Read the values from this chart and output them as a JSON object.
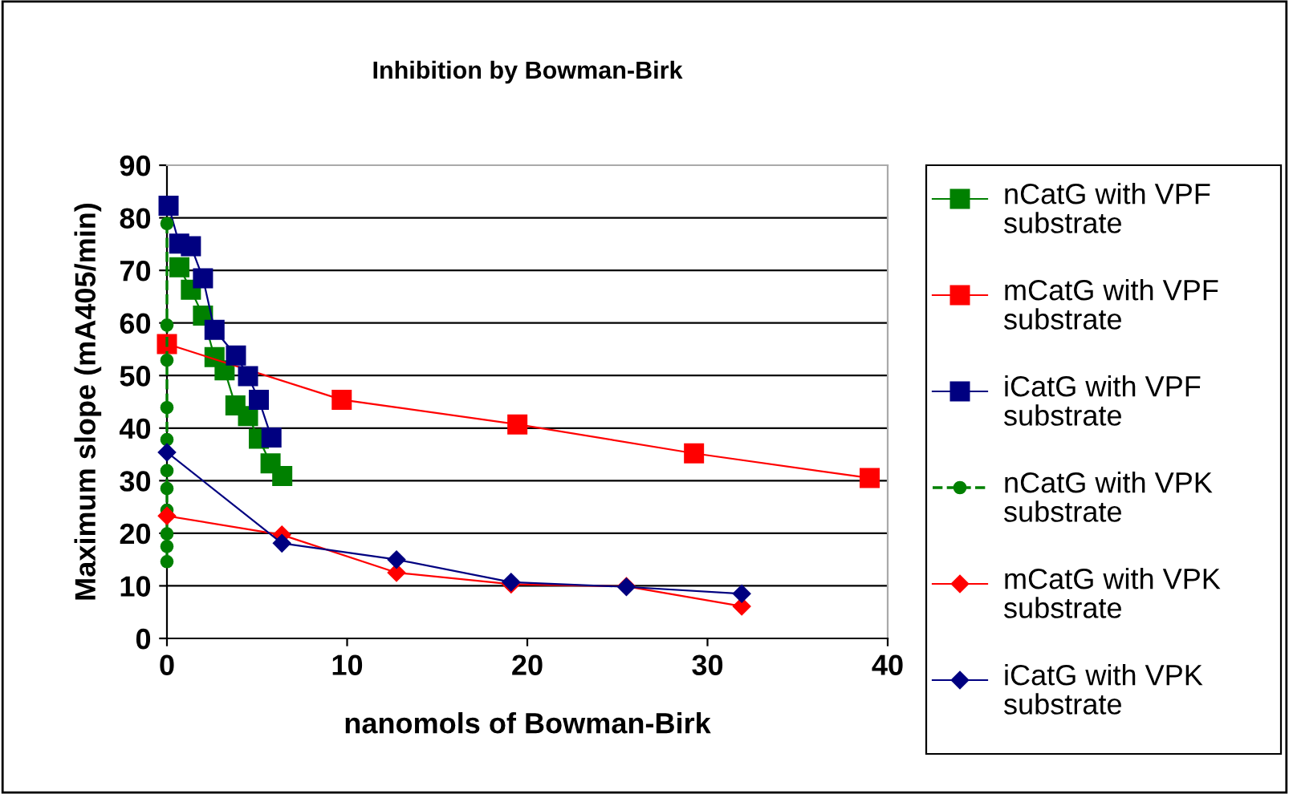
{
  "chart_data": {
    "type": "line",
    "title": "Inhibition by Bowman-Birk",
    "xlabel": "nanomols of Bowman-Birk",
    "ylabel": "Maximum slope (mA405/min)",
    "xlim": [
      0,
      40
    ],
    "xticks": [
      0,
      10,
      20,
      30,
      40
    ],
    "ylim": [
      0,
      90
    ],
    "yticks": [
      0,
      10,
      20,
      30,
      40,
      50,
      60,
      70,
      80,
      90
    ],
    "grid": "y",
    "legend": "right",
    "series": [
      {
        "name": "nCatG with VPF substrate",
        "color": "#008000",
        "marker": "square",
        "line_style": "solid",
        "x": [
          0.69,
          1.33,
          2.0,
          2.64,
          3.2,
          3.8,
          4.5,
          5.1,
          5.75,
          6.4
        ],
        "values": [
          70.6,
          66.3,
          61.4,
          53.5,
          51.0,
          44.3,
          42.3,
          38.0,
          33.3,
          30.9
        ]
      },
      {
        "name": "mCatG with VPF substrate",
        "color": "#ff0000",
        "marker": "square",
        "line_style": "solid",
        "x": [
          0,
          9.7,
          19.45,
          29.25,
          39.0
        ],
        "values": [
          56.0,
          45.4,
          40.7,
          35.2,
          30.5
        ]
      },
      {
        "name": "iCatG with VPF substrate",
        "color": "#000080",
        "marker": "square",
        "line_style": "solid",
        "x": [
          0.09,
          0.68,
          1.33,
          2.0,
          2.64,
          3.83,
          4.5,
          5.1,
          5.8
        ],
        "values": [
          82.3,
          75.1,
          74.6,
          68.5,
          58.7,
          53.8,
          49.9,
          45.4,
          38.2
        ]
      },
      {
        "name": "nCatG with VPK substrate",
        "color": "#008000",
        "marker": "circle",
        "line_style": "dashed",
        "x": [
          0,
          0,
          0,
          0,
          0,
          0,
          0,
          0,
          0,
          0,
          0
        ],
        "values": [
          78.9,
          59.6,
          52.9,
          43.9,
          37.8,
          31.9,
          28.5,
          24.4,
          19.9,
          17.5,
          14.6
        ]
      },
      {
        "name": "mCatG with VPK substrate",
        "color": "#ff0000",
        "marker": "diamond",
        "line_style": "solid",
        "x": [
          0,
          6.38,
          12.74,
          19.1,
          25.5,
          31.9
        ],
        "values": [
          23.3,
          19.7,
          12.5,
          10.3,
          9.9,
          6.1
        ]
      },
      {
        "name": "iCatG with VPK substrate",
        "color": "#000080",
        "marker": "diamond",
        "line_style": "solid",
        "x": [
          0,
          6.38,
          12.74,
          19.1,
          25.5,
          31.9
        ],
        "values": [
          35.4,
          18.1,
          15.0,
          10.7,
          9.8,
          8.5
        ]
      }
    ]
  }
}
